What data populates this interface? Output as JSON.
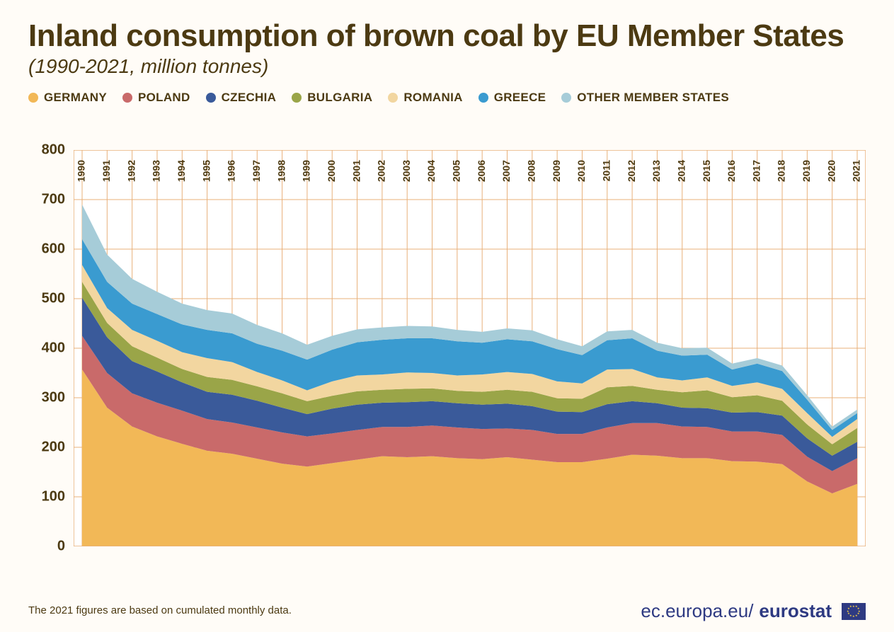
{
  "title": "Inland consumption of brown coal by EU Member States",
  "subtitle": "(1990-2021, million tonnes)",
  "footnote": "The 2021 figures are based on cumulated monthly data.",
  "footer": {
    "url_light": "ec.europa.eu/",
    "url_bold": "eurostat"
  },
  "chart": {
    "type": "stacked-area",
    "background_color": "#ffffff",
    "grid_color": "#e8b07a",
    "border_color": "#e8b07a",
    "title_color": "#4c3a12",
    "y": {
      "min": 0,
      "max": 800,
      "ticks": [
        0,
        100,
        200,
        300,
        400,
        500,
        600,
        700,
        800
      ],
      "tick_fontsize": 20,
      "tick_fontweight": 700,
      "tick_color": "#4c3a12"
    },
    "x": {
      "years": [
        "1990",
        "1991",
        "1992",
        "1993",
        "1994",
        "1995",
        "1996",
        "1997",
        "1998",
        "1999",
        "2000",
        "2001",
        "2002",
        "2003",
        "2004",
        "2005",
        "2006",
        "2007",
        "2008",
        "2009",
        "2010",
        "2011",
        "2012",
        "2013",
        "2014",
        "2015",
        "2016",
        "2017",
        "2018",
        "2019",
        "2020",
        "2021"
      ],
      "label_fontsize": 14,
      "label_fontweight": 600,
      "label_color": "#4c3a12",
      "label_rotation": -90
    },
    "series": [
      {
        "name": "GERMANY",
        "color": "#f2b857",
        "values": [
          357,
          280,
          242,
          222,
          207,
          193,
          187,
          177,
          167,
          161,
          168,
          175,
          182,
          180,
          182,
          178,
          176,
          180,
          175,
          170,
          170,
          177,
          185,
          183,
          178,
          178,
          172,
          171,
          166,
          131,
          107,
          126
        ]
      },
      {
        "name": "POLAND",
        "color": "#c96a6a",
        "values": [
          68,
          70,
          67,
          68,
          67,
          64,
          63,
          63,
          63,
          61,
          60,
          60,
          59,
          61,
          62,
          62,
          61,
          58,
          60,
          57,
          57,
          63,
          64,
          66,
          64,
          63,
          60,
          61,
          59,
          50,
          45,
          52
        ]
      },
      {
        "name": "CZECHIA",
        "color": "#3a5a9a",
        "values": [
          77,
          72,
          65,
          63,
          57,
          55,
          56,
          54,
          50,
          45,
          50,
          51,
          49,
          50,
          49,
          49,
          49,
          50,
          48,
          45,
          44,
          47,
          44,
          40,
          38,
          38,
          38,
          39,
          39,
          37,
          31,
          33
        ]
      },
      {
        "name": "BULGARIA",
        "color": "#9aa548",
        "values": [
          32,
          29,
          30,
          28,
          27,
          30,
          30,
          29,
          29,
          26,
          26,
          27,
          26,
          27,
          26,
          25,
          26,
          28,
          29,
          27,
          27,
          34,
          31,
          27,
          31,
          36,
          31,
          34,
          30,
          28,
          23,
          28
        ]
      },
      {
        "name": "ROMANIA",
        "color": "#f2d6a0",
        "values": [
          34,
          30,
          33,
          34,
          34,
          38,
          36,
          29,
          26,
          22,
          29,
          32,
          31,
          33,
          31,
          31,
          35,
          36,
          36,
          34,
          31,
          36,
          34,
          25,
          24,
          26,
          23,
          26,
          24,
          23,
          15,
          18
        ]
      },
      {
        "name": "GREECE",
        "color": "#3a9bd0",
        "values": [
          52,
          53,
          53,
          54,
          56,
          57,
          58,
          57,
          60,
          62,
          64,
          67,
          70,
          69,
          70,
          69,
          64,
          66,
          66,
          65,
          57,
          59,
          62,
          54,
          50,
          46,
          33,
          38,
          36,
          27,
          14,
          12
        ]
      },
      {
        "name": "OTHER MEMBER STATES",
        "color": "#a6ccd8",
        "values": [
          70,
          55,
          50,
          45,
          42,
          40,
          40,
          38,
          35,
          30,
          28,
          26,
          25,
          25,
          24,
          23,
          22,
          22,
          22,
          20,
          18,
          18,
          17,
          16,
          15,
          14,
          12,
          11,
          11,
          9,
          7,
          7
        ]
      }
    ]
  }
}
